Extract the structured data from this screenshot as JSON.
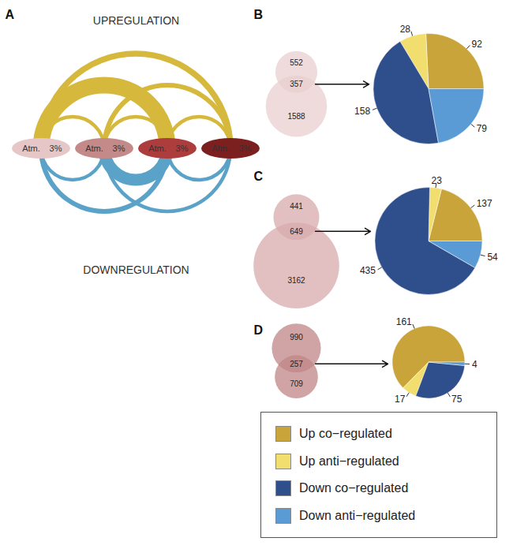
{
  "chart_data": [
    {
      "type": "arc_diagram",
      "panel": "A",
      "nodes": [
        {
          "label": "Atm.",
          "share": "3%",
          "color": "#e6c6c6"
        },
        {
          "label": "Atm.",
          "share": "3%",
          "color": "#c48a8a"
        },
        {
          "label": "Atm.",
          "share": "3%",
          "color": "#ad3d3d"
        },
        {
          "label": "Atm.",
          "share": "3%",
          "color": "#7c1f1f"
        }
      ],
      "series": [
        {
          "name": "UPREGULATION",
          "color": "#d6b83c",
          "arcs": [
            {
              "from": 0,
              "to": 1,
              "weight": 3
            },
            {
              "from": 0,
              "to": 2,
              "weight": 14
            },
            {
              "from": 0,
              "to": 3,
              "weight": 5
            },
            {
              "from": 1,
              "to": 2,
              "weight": 3
            },
            {
              "from": 1,
              "to": 3,
              "weight": 4
            },
            {
              "from": 2,
              "to": 3,
              "weight": 3
            }
          ]
        },
        {
          "name": "DOWNREGULATION",
          "color": "#5aa2c8",
          "arcs": [
            {
              "from": 0,
              "to": 1,
              "weight": 3
            },
            {
              "from": 0,
              "to": 2,
              "weight": 4
            },
            {
              "from": 1,
              "to": 2,
              "weight": 10
            },
            {
              "from": 1,
              "to": 3,
              "weight": 3
            },
            {
              "from": 2,
              "to": 3,
              "weight": 3
            }
          ]
        }
      ]
    },
    {
      "type": "venn_pie",
      "panel": "B",
      "venn": {
        "first_only": 552,
        "both": 357,
        "second_only": 1588,
        "color": "#e9cfcf"
      },
      "values": [
        92,
        28,
        158,
        79
      ],
      "data_labels": true
    },
    {
      "type": "venn_pie",
      "panel": "C",
      "venn": {
        "first_only": 441,
        "both": 649,
        "second_only": 3162,
        "color": "#d8abad"
      },
      "values": [
        137,
        23,
        435,
        54
      ],
      "data_labels": true
    },
    {
      "type": "venn_pie",
      "panel": "D",
      "venn": {
        "first_only": 990,
        "both": 257,
        "second_only": 709,
        "color": "#c08587"
      },
      "values": [
        161,
        17,
        75,
        4
      ],
      "data_labels": true
    },
    {
      "type": "legend",
      "categories": [
        "Up co−regulated",
        "Up anti−regulated",
        "Down co−regulated",
        "Down anti−regulated"
      ],
      "colors": [
        "#c9a43a",
        "#f1de6f",
        "#2f4e8c",
        "#5b9bd5"
      ]
    }
  ]
}
